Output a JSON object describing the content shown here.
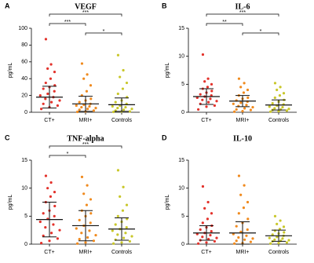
{
  "chart_data": [
    {
      "type": "dotplot",
      "panel": "A",
      "title": "VEGF",
      "ylabel": "pg/mL",
      "categories": [
        "CT+",
        "MRI+",
        "Controls"
      ],
      "ylim": [
        0,
        100
      ],
      "yticks": [
        0,
        20,
        40,
        60,
        80,
        100
      ],
      "groups": [
        {
          "name": "CT+",
          "color": "#e3322b",
          "mean": 18,
          "sd": 13,
          "values": [
            87,
            57,
            52,
            48,
            40,
            35,
            32,
            30,
            28,
            25,
            22,
            20,
            18,
            16,
            14,
            12,
            10,
            8,
            6,
            4
          ]
        },
        {
          "name": "MRI+",
          "color": "#f08a1e",
          "mean": 10,
          "sd": 9,
          "values": [
            58,
            45,
            40,
            32,
            25,
            20,
            16,
            14,
            12,
            10,
            9,
            8,
            7,
            6,
            5,
            4,
            3,
            2,
            1,
            0.5
          ]
        },
        {
          "name": "Controls",
          "color": "#c9c72a",
          "mean": 9,
          "sd": 8,
          "values": [
            68,
            50,
            42,
            35,
            28,
            22,
            18,
            14,
            12,
            10,
            8,
            7,
            6,
            5,
            4,
            3,
            2,
            1,
            1,
            0.5
          ]
        }
      ],
      "brackets": [
        {
          "label": "***",
          "groups": [
            "CT+",
            "Controls"
          ]
        },
        {
          "label": "***",
          "groups": [
            "CT+",
            "MRI+"
          ]
        },
        {
          "label": "*",
          "groups": [
            "MRI+",
            "Controls"
          ]
        }
      ]
    },
    {
      "type": "dotplot",
      "panel": "B",
      "title": "IL-6",
      "ylabel": "pg/mL",
      "categories": [
        "CT+",
        "MRI+",
        "Controls"
      ],
      "ylim": [
        0,
        15
      ],
      "yticks": [
        0,
        5,
        10,
        15
      ],
      "groups": [
        {
          "name": "CT+",
          "color": "#e3322b",
          "mean": 2.8,
          "sd": 1.4,
          "values": [
            10.3,
            6,
            5.5,
            5,
            4.5,
            4.2,
            3.8,
            3.5,
            3.2,
            3,
            2.8,
            2.6,
            2.4,
            2.2,
            2,
            1.8,
            1.5,
            1.2,
            1,
            0.5
          ]
        },
        {
          "name": "MRI+",
          "color": "#f08a1e",
          "mean": 2.0,
          "sd": 1.0,
          "values": [
            6,
            5.2,
            4.5,
            4,
            3.5,
            3,
            2.6,
            2.4,
            2.1,
            1.9,
            1.7,
            1.5,
            1.3,
            1.1,
            0.9,
            0.7,
            0.5,
            0.4,
            0.2,
            0.1
          ]
        },
        {
          "name": "Controls",
          "color": "#c9c72a",
          "mean": 1.3,
          "sd": 0.9,
          "values": [
            5.2,
            4.5,
            4,
            3.4,
            3,
            2.6,
            2.2,
            1.9,
            1.6,
            1.4,
            1.2,
            1,
            0.9,
            0.7,
            0.6,
            0.5,
            0.4,
            0.3,
            0.2,
            0.1
          ]
        }
      ],
      "brackets": [
        {
          "label": "***",
          "groups": [
            "CT+",
            "Controls"
          ]
        },
        {
          "label": "**",
          "groups": [
            "CT+",
            "MRI+"
          ]
        },
        {
          "label": "*",
          "groups": [
            "MRI+",
            "Controls"
          ]
        }
      ]
    },
    {
      "type": "dotplot",
      "panel": "C",
      "title": "TNF-alpha",
      "ylabel": "pg/mL",
      "categories": [
        "CT+",
        "MRI+",
        "Controls"
      ],
      "ylim": [
        0,
        15
      ],
      "yticks": [
        0,
        5,
        10,
        15
      ],
      "groups": [
        {
          "name": "CT+",
          "color": "#e3322b",
          "mean": 4.4,
          "sd": 3.1,
          "values": [
            12.2,
            11,
            10,
            9.3,
            8.5,
            7.5,
            6.8,
            6,
            5.5,
            5,
            4.5,
            4,
            3.5,
            3,
            2.5,
            2,
            1.5,
            1,
            0.6,
            0.2
          ]
        },
        {
          "name": "MRI+",
          "color": "#f08a1e",
          "mean": 3.3,
          "sd": 2.7,
          "values": [
            12,
            10.5,
            9,
            8,
            7,
            6,
            5.5,
            5,
            4.3,
            3.8,
            3.3,
            2.8,
            2.4,
            2,
            1.6,
            1.2,
            0.9,
            0.6,
            0.3,
            0.1
          ]
        },
        {
          "name": "Controls",
          "color": "#c9c72a",
          "mean": 2.7,
          "sd": 2.0,
          "values": [
            13.2,
            10.2,
            8.5,
            7,
            6,
            5,
            4.5,
            4,
            3.5,
            3,
            2.7,
            2.4,
            2,
            1.7,
            1.4,
            1.1,
            0.8,
            0.5,
            0.3,
            0.1
          ]
        }
      ],
      "brackets": [
        {
          "label": "***",
          "groups": [
            "CT+",
            "Controls"
          ]
        },
        {
          "label": "*",
          "groups": [
            "CT+",
            "MRI+"
          ]
        }
      ]
    },
    {
      "type": "dotplot",
      "panel": "D",
      "title": "IL-10",
      "ylabel": "pg/mL",
      "categories": [
        "CT+",
        "MRI+",
        "Controls"
      ],
      "ylim": [
        0,
        15
      ],
      "yticks": [
        0,
        5,
        10,
        15
      ],
      "groups": [
        {
          "name": "CT+",
          "color": "#e3322b",
          "mean": 2.0,
          "sd": 1.3,
          "values": [
            10.3,
            7.5,
            6.4,
            5.5,
            4.5,
            3.8,
            3.3,
            3,
            2.6,
            2.3,
            2,
            1.8,
            1.6,
            1.3,
            1.1,
            0.9,
            0.7,
            0.5,
            0.3,
            0.1
          ]
        },
        {
          "name": "MRI+",
          "color": "#f08a1e",
          "mean": 2.0,
          "sd": 2.0,
          "values": [
            12.2,
            10.5,
            8.8,
            7.5,
            6.5,
            5.5,
            4.5,
            3.8,
            3.2,
            2.6,
            2.2,
            1.8,
            1.5,
            1.2,
            1,
            0.8,
            0.6,
            0.4,
            0.2,
            0.1
          ]
        },
        {
          "name": "Controls",
          "color": "#c9c72a",
          "mean": 1.5,
          "sd": 1.0,
          "values": [
            5,
            4.2,
            3.6,
            3.1,
            2.7,
            2.4,
            2.1,
            1.9,
            1.7,
            1.5,
            1.3,
            1.1,
            1,
            0.8,
            0.7,
            0.6,
            0.5,
            0.3,
            0.2,
            0.1
          ]
        }
      ],
      "brackets": []
    }
  ]
}
